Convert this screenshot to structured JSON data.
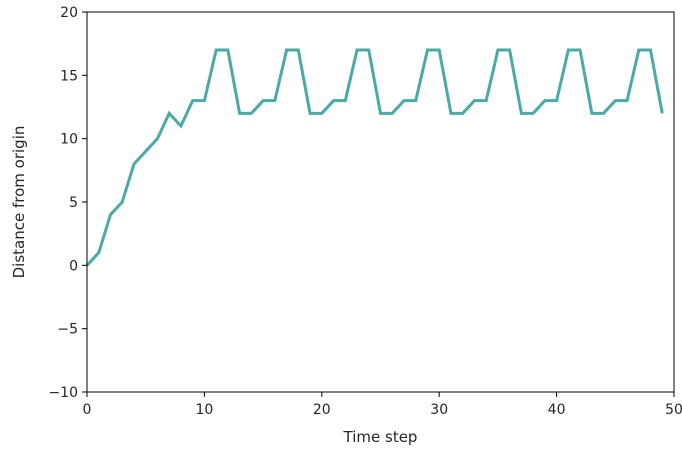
{
  "chart_data": {
    "type": "line",
    "title": "",
    "xlabel": "Time step",
    "ylabel": "Distance from origin",
    "xlim": [
      0,
      50
    ],
    "ylim": [
      -10,
      20
    ],
    "xticks": [
      0,
      10,
      20,
      30,
      40,
      50
    ],
    "yticks": [
      -10,
      -5,
      0,
      5,
      10,
      15,
      20
    ],
    "grid": false,
    "legend": "none",
    "series": [
      {
        "color": "#4aaaa5",
        "x": [
          0,
          1,
          2,
          3,
          4,
          5,
          6,
          7,
          8,
          9,
          10,
          11,
          12,
          13,
          14,
          15,
          16,
          17,
          18,
          19,
          20,
          21,
          22,
          23,
          24,
          25,
          26,
          27,
          28,
          29,
          30,
          31,
          32,
          33,
          34,
          35,
          36,
          37,
          38,
          39,
          40,
          41,
          42,
          43,
          44,
          45,
          46,
          47,
          48,
          49
        ],
        "y": [
          0,
          1,
          4,
          5,
          8,
          9,
          10,
          12,
          11,
          13,
          13,
          17,
          17,
          12,
          12,
          13,
          13,
          17,
          17,
          12,
          12,
          13,
          13,
          17,
          17,
          12,
          12,
          13,
          13,
          17,
          17,
          12,
          12,
          13,
          13,
          17,
          17,
          12,
          12,
          13,
          13,
          17,
          17,
          12,
          12,
          13,
          13,
          17,
          17,
          12
        ]
      }
    ]
  }
}
